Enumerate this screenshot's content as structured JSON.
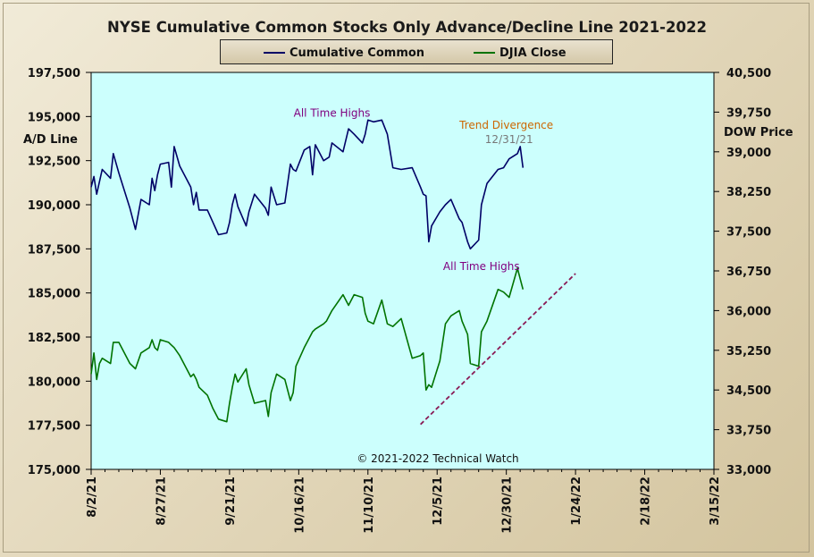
{
  "chart_data": {
    "type": "line",
    "title": "NYSE Cumulative  Common Stocks Only Advance/Decline  Line 2021-2022",
    "left_axis_label": "A/D Line",
    "right_axis_label": "DOW Price",
    "copyright": "© 2021-2022  Technical  Watch",
    "y_left_range": [
      175000,
      197500
    ],
    "y_left_ticks": [
      "175,000",
      "177,500",
      "180,000",
      "182,500",
      "185,000",
      "187,500",
      "190,000",
      "192,500",
      "195,000",
      "197,500"
    ],
    "y_right_range": [
      33000,
      40500
    ],
    "y_right_ticks": [
      "33,000",
      "33,750",
      "34,500",
      "35,250",
      "36,000",
      "36,750",
      "37,500",
      "38,250",
      "39,000",
      "39,750",
      "40,500"
    ],
    "x_range": [
      "2021-08-02",
      "2022-03-15"
    ],
    "x_tick_labels": [
      "8/2/21",
      "8/27/21",
      "9/21/21",
      "10/16/21",
      "11/10/21",
      "12/5/21",
      "12/30/21",
      "1/24/22",
      "2/18/22",
      "3/15/22"
    ],
    "grid": false,
    "legend_placement": "top",
    "colors": {
      "plot_background": "#ccfffd",
      "cumulative_common": "#000066",
      "djia_close": "#007300",
      "trendline": "#8a1a55",
      "annotation_high": "#800080",
      "annotation_divergence": "#cc6600",
      "annotation_date": "#777777"
    },
    "series": [
      {
        "name": "Cumulative Common",
        "axis": "left",
        "x": [
          "2021-08-02",
          "2021-08-03",
          "2021-08-04",
          "2021-08-05",
          "2021-08-06",
          "2021-08-09",
          "2021-08-10",
          "2021-08-12",
          "2021-08-16",
          "2021-08-18",
          "2021-08-20",
          "2021-08-23",
          "2021-08-24",
          "2021-08-25",
          "2021-08-26",
          "2021-08-27",
          "2021-08-30",
          "2021-08-31",
          "2021-09-01",
          "2021-09-03",
          "2021-09-07",
          "2021-09-08",
          "2021-09-09",
          "2021-09-10",
          "2021-09-13",
          "2021-09-15",
          "2021-09-17",
          "2021-09-20",
          "2021-09-21",
          "2021-09-22",
          "2021-09-23",
          "2021-09-24",
          "2021-09-27",
          "2021-09-28",
          "2021-09-30",
          "2021-10-04",
          "2021-10-05",
          "2021-10-06",
          "2021-10-08",
          "2021-10-11",
          "2021-10-13",
          "2021-10-14",
          "2021-10-15",
          "2021-10-18",
          "2021-10-20",
          "2021-10-21",
          "2021-10-22",
          "2021-10-25",
          "2021-10-26",
          "2021-10-27",
          "2021-10-28",
          "2021-11-01",
          "2021-11-03",
          "2021-11-05",
          "2021-11-08",
          "2021-11-09",
          "2021-11-10",
          "2021-11-12",
          "2021-11-15",
          "2021-11-17",
          "2021-11-19",
          "2021-11-22",
          "2021-11-26",
          "2021-11-29",
          "2021-11-30",
          "2021-12-01",
          "2021-12-02",
          "2021-12-03",
          "2021-12-06",
          "2021-12-08",
          "2021-12-10",
          "2021-12-13",
          "2021-12-14",
          "2021-12-16",
          "2021-12-17",
          "2021-12-20",
          "2021-12-21",
          "2021-12-23",
          "2021-12-27",
          "2021-12-29",
          "2021-12-31",
          "2022-01-03",
          "2022-01-04",
          "2022-01-05"
        ],
        "values": [
          191000,
          191600,
          190600,
          191300,
          192000,
          191500,
          192900,
          191800,
          189800,
          188600,
          190300,
          190000,
          191500,
          190800,
          191700,
          192300,
          192400,
          191000,
          193300,
          192200,
          191000,
          190000,
          190700,
          189700,
          189700,
          189000,
          188300,
          188400,
          189000,
          190000,
          190600,
          189900,
          188800,
          189600,
          190600,
          189800,
          189400,
          191000,
          190000,
          190100,
          192300,
          192000,
          191900,
          193100,
          193300,
          191700,
          193400,
          192500,
          192600,
          192700,
          193500,
          193000,
          194300,
          194000,
          193500,
          194000,
          194800,
          194700,
          194800,
          194000,
          192100,
          192000,
          192100,
          191000,
          190600,
          190500,
          187900,
          188800,
          189600,
          190000,
          190300,
          189200,
          189000,
          187900,
          187500,
          188000,
          190000,
          191200,
          192000,
          192100,
          192600,
          192900,
          193300,
          192100
        ]
      },
      {
        "name": "DJIA Close",
        "axis": "right",
        "x": [
          "2021-08-02",
          "2021-08-03",
          "2021-08-04",
          "2021-08-05",
          "2021-08-06",
          "2021-08-09",
          "2021-08-10",
          "2021-08-12",
          "2021-08-16",
          "2021-08-18",
          "2021-08-20",
          "2021-08-23",
          "2021-08-24",
          "2021-08-25",
          "2021-08-26",
          "2021-08-27",
          "2021-08-30",
          "2021-08-31",
          "2021-09-01",
          "2021-09-03",
          "2021-09-07",
          "2021-09-08",
          "2021-09-09",
          "2021-09-10",
          "2021-09-13",
          "2021-09-15",
          "2021-09-17",
          "2021-09-20",
          "2021-09-21",
          "2021-09-22",
          "2021-09-23",
          "2021-09-24",
          "2021-09-27",
          "2021-09-28",
          "2021-09-30",
          "2021-10-04",
          "2021-10-05",
          "2021-10-06",
          "2021-10-08",
          "2021-10-11",
          "2021-10-13",
          "2021-10-14",
          "2021-10-15",
          "2021-10-18",
          "2021-10-20",
          "2021-10-21",
          "2021-10-22",
          "2021-10-25",
          "2021-10-26",
          "2021-10-27",
          "2021-10-28",
          "2021-11-01",
          "2021-11-03",
          "2021-11-05",
          "2021-11-08",
          "2021-11-09",
          "2021-11-10",
          "2021-11-12",
          "2021-11-15",
          "2021-11-17",
          "2021-11-19",
          "2021-11-22",
          "2021-11-26",
          "2021-11-29",
          "2021-11-30",
          "2021-12-01",
          "2021-12-02",
          "2021-12-03",
          "2021-12-06",
          "2021-12-08",
          "2021-12-10",
          "2021-12-13",
          "2021-12-14",
          "2021-12-16",
          "2021-12-17",
          "2021-12-20",
          "2021-12-21",
          "2021-12-23",
          "2021-12-27",
          "2021-12-29",
          "2021-12-31",
          "2022-01-03",
          "2022-01-04",
          "2022-01-05"
        ],
        "values": [
          34800,
          35200,
          34700,
          35000,
          35100,
          35000,
          35400,
          35400,
          35000,
          34900,
          35200,
          35300,
          35450,
          35300,
          35250,
          35450,
          35400,
          35350,
          35300,
          35150,
          34750,
          34800,
          34700,
          34550,
          34400,
          34150,
          33950,
          33900,
          34250,
          34550,
          34800,
          34650,
          34900,
          34600,
          34250,
          34300,
          34000,
          34450,
          34800,
          34700,
          34300,
          34450,
          34950,
          35300,
          35500,
          35600,
          35650,
          35750,
          35800,
          35900,
          36000,
          36300,
          36100,
          36300,
          36250,
          35950,
          35800,
          35750,
          36200,
          35750,
          35700,
          35850,
          35100,
          35150,
          35200,
          34500,
          34600,
          34550,
          35050,
          35750,
          35900,
          36000,
          35800,
          35550,
          35000,
          34950,
          35600,
          35800,
          36400,
          36350,
          36250,
          36800,
          36600,
          36400
        ]
      }
    ],
    "trendline": {
      "x": [
        "2021-11-29",
        "2022-01-24"
      ],
      "y_right": [
        33850,
        36700
      ]
    },
    "annotations": [
      {
        "text": "All Time Highs",
        "x": "2021-10-28",
        "y_left": 195000,
        "color": "annotation_high"
      },
      {
        "text": "Trend  Divergence",
        "x": "2021-12-30",
        "y_left": 194300,
        "color": "annotation_divergence"
      },
      {
        "text": "12/31/21",
        "x": "2021-12-31",
        "y_left": 193500,
        "color": "annotation_date"
      },
      {
        "text": "All Time Highs",
        "x": "2021-12-21",
        "y_left": 186300,
        "color": "annotation_high"
      }
    ]
  },
  "legend": {
    "items": [
      {
        "label": "Cumulative Common",
        "color": "#000066"
      },
      {
        "label": "DJIA Close",
        "color": "#007300"
      }
    ]
  }
}
